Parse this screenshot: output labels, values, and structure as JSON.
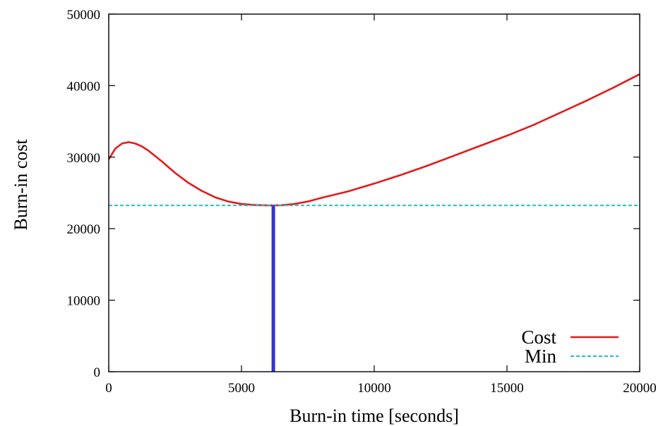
{
  "chart_data": {
    "type": "line",
    "title": "",
    "xlabel": "Burn-in time [seconds]",
    "ylabel": "Burn-in cost",
    "xlim": [
      0,
      20000
    ],
    "ylim": [
      0,
      50000
    ],
    "xticks": [
      0,
      5000,
      10000,
      15000,
      20000
    ],
    "yticks": [
      0,
      10000,
      20000,
      30000,
      40000,
      50000
    ],
    "grid": false,
    "legend_position": "bottom-right",
    "series": [
      {
        "name": "Cost",
        "color": "#e41a1c",
        "style": "solid",
        "x": [
          0,
          250,
          500,
          750,
          1000,
          1250,
          1500,
          2000,
          2500,
          3000,
          3500,
          4000,
          4500,
          5000,
          5500,
          6000,
          6200,
          6500,
          7000,
          7500,
          8000,
          9000,
          10000,
          11000,
          12000,
          13000,
          14000,
          15000,
          16000,
          17000,
          18000,
          19000,
          20000
        ],
        "y": [
          29700,
          31200,
          31900,
          32100,
          31900,
          31500,
          30900,
          29400,
          27800,
          26400,
          25300,
          24400,
          23800,
          23450,
          23300,
          23250,
          23250,
          23270,
          23450,
          23800,
          24300,
          25200,
          26300,
          27500,
          28800,
          30200,
          31600,
          33000,
          34500,
          36200,
          37900,
          39700,
          41600
        ]
      },
      {
        "name": "Min",
        "color": "#1fc1bc",
        "style": "dashed",
        "x": [
          0,
          20000
        ],
        "y": [
          23250,
          23250
        ]
      }
    ],
    "annotations": [
      {
        "type": "vertical-line",
        "x": 6200,
        "y_from": 0,
        "y_to": 23250,
        "color": "#3333cc"
      }
    ]
  }
}
